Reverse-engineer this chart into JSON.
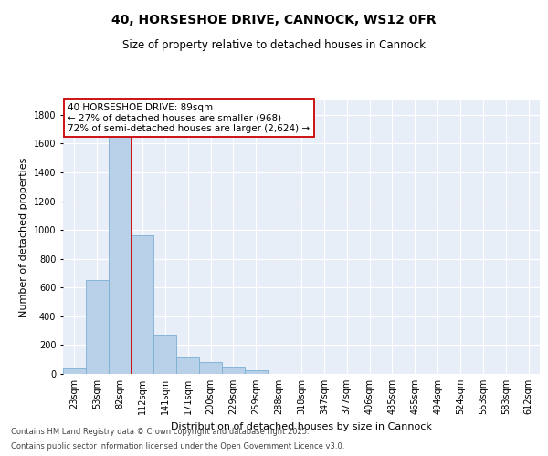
{
  "title": "40, HORSESHOE DRIVE, CANNOCK, WS12 0FR",
  "subtitle": "Size of property relative to detached houses in Cannock",
  "xlabel": "Distribution of detached houses by size in Cannock",
  "ylabel": "Number of detached properties",
  "bar_color": "#b8d0e8",
  "bar_edgecolor": "#7aafd4",
  "categories": [
    "23sqm",
    "53sqm",
    "82sqm",
    "112sqm",
    "141sqm",
    "171sqm",
    "200sqm",
    "229sqm",
    "259sqm",
    "288sqm",
    "318sqm",
    "347sqm",
    "377sqm",
    "406sqm",
    "435sqm",
    "465sqm",
    "494sqm",
    "524sqm",
    "553sqm",
    "583sqm",
    "612sqm"
  ],
  "values": [
    35,
    650,
    1720,
    960,
    270,
    120,
    85,
    50,
    25,
    0,
    0,
    0,
    0,
    0,
    0,
    0,
    0,
    0,
    0,
    0,
    0
  ],
  "ylim": [
    0,
    1900
  ],
  "yticks": [
    0,
    200,
    400,
    600,
    800,
    1000,
    1200,
    1400,
    1600,
    1800
  ],
  "vline_color": "#cc0000",
  "vline_x": 2.5,
  "annotation_text": "40 HORSESHOE DRIVE: 89sqm\n← 27% of detached houses are smaller (968)\n72% of semi-detached houses are larger (2,624) →",
  "annotation_box_edgecolor": "#cc0000",
  "annotation_box_facecolor": "#ffffff",
  "footer1": "Contains HM Land Registry data © Crown copyright and database right 2025.",
  "footer2": "Contains public sector information licensed under the Open Government Licence v3.0.",
  "background_color": "#e8eef8",
  "grid_color": "#ffffff",
  "title_fontsize": 10,
  "subtitle_fontsize": 8.5,
  "axis_label_fontsize": 8,
  "tick_fontsize": 7,
  "annotation_fontsize": 7.5,
  "footer_fontsize": 6
}
